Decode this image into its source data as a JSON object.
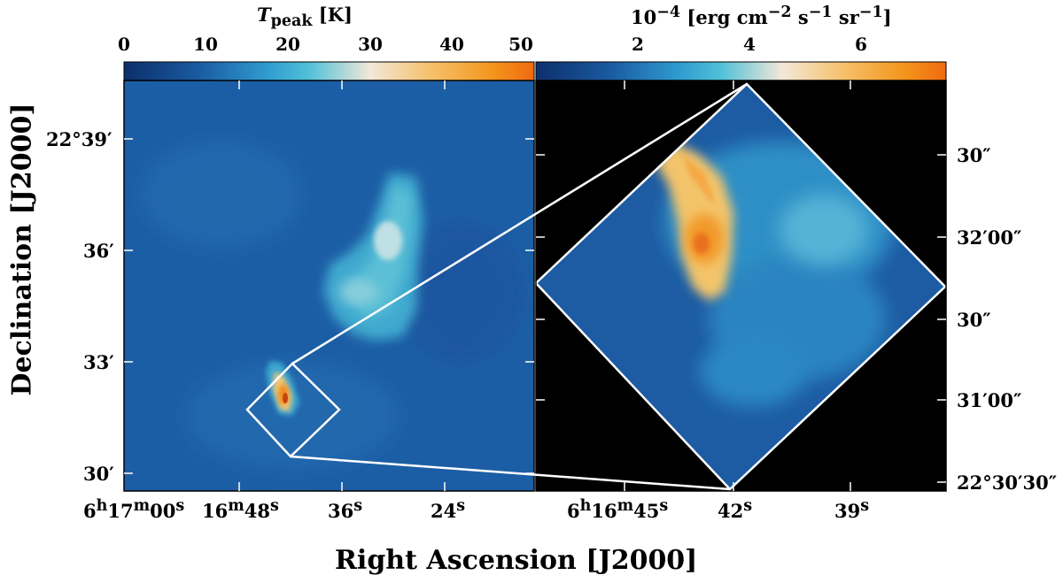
{
  "left_colorbar": {
    "label_html": "<i>T</i><sub>peak</sub> [K]",
    "ticks": [
      "0",
      "10",
      "20",
      "30",
      "40",
      "50"
    ],
    "range": [
      0,
      50
    ]
  },
  "right_colorbar": {
    "label_html": "10<sup>&minus;4</sup> [erg cm<sup>&minus;2</sup> s<sup>&minus;1</sup> sr<sup>&minus;1</sup>]",
    "ticks": [
      "2",
      "4",
      "6"
    ]
  },
  "axes": {
    "y_label": "Declination [J2000]",
    "x_label": "Right Ascension [J2000]",
    "left_y_ticks": [
      "22°39′",
      "36′",
      "33′",
      "30′"
    ],
    "left_x_ticks_html": [
      "6<sup>h</sup>17<sup>m</sup>00<sup>s</sup>",
      "16<sup>m</sup>48<sup>s</sup>",
      "36<sup>s</sup>",
      "24<sup>s</sup>"
    ],
    "right_y_ticks": [
      "30″",
      "32′00″",
      "30″",
      "31′00″",
      "22°30′30″"
    ],
    "right_x_ticks_html": [
      "6<sup>h</sup>16<sup>m</sup>45<sup>s</sup>",
      "42<sup>s</sup>",
      "39<sup>s</sup>"
    ]
  },
  "colors": {
    "map_low": "#1a5aa0",
    "map_mid": "#35a9d4",
    "map_peak": "#f0a030",
    "background_right": "#000000"
  }
}
